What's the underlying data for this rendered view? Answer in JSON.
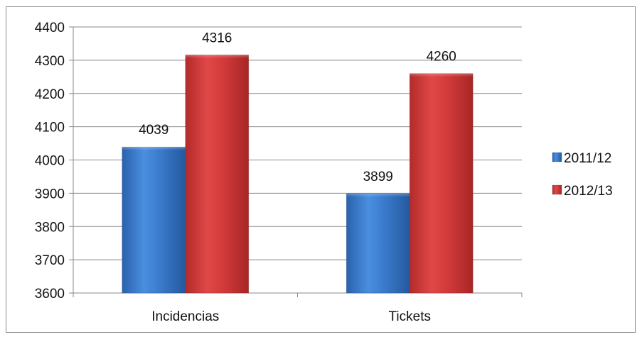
{
  "chart_data": {
    "type": "bar",
    "categories": [
      "Incidencias",
      "Tickets"
    ],
    "series": [
      {
        "name": "2011/12",
        "values": [
          4039,
          3899
        ],
        "color": "#3f7fd0"
      },
      {
        "name": "2012/13",
        "values": [
          4316,
          4260
        ],
        "color": "#d63c3c"
      }
    ],
    "ylim": [
      3600,
      4400
    ],
    "ytick_step": 100,
    "grid": true,
    "legend": "right",
    "data_labels": true
  }
}
